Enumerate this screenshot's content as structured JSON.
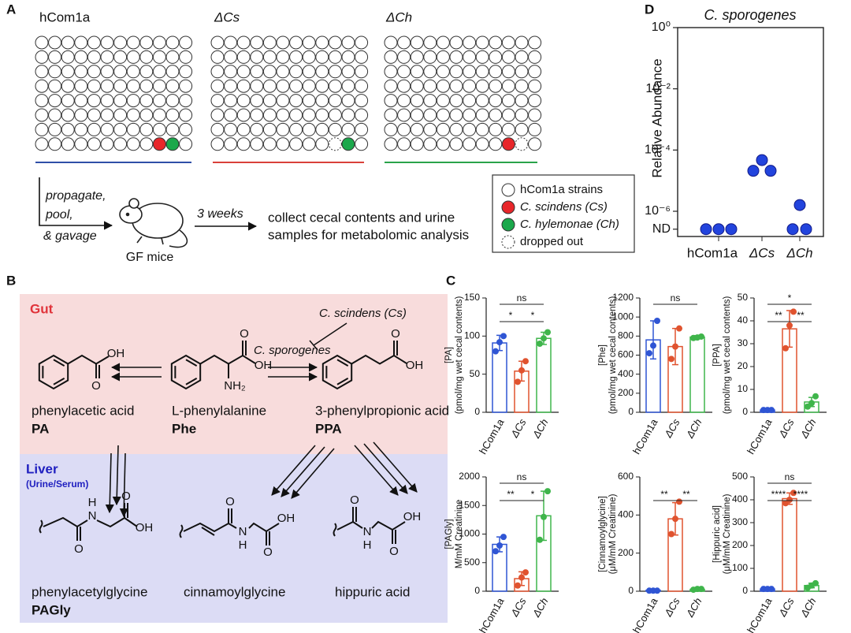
{
  "panel_labels": [
    "A",
    "B",
    "C",
    "D"
  ],
  "panel_a": {
    "groups": [
      "hCom1a",
      "ΔCs",
      "ΔCh"
    ],
    "steps": [
      "propagate,",
      "pool,",
      "& gavage"
    ],
    "mice": "GF mice",
    "duration": "3 weeks",
    "outcome": [
      "collect cecal contents and urine",
      "samples for metabolomic analysis"
    ],
    "legend": [
      "hCom1a strains",
      "C. scindens (Cs)",
      "C. hylemonae (Ch)",
      "dropped out"
    ]
  },
  "panel_b": {
    "gut": "Gut",
    "liver": "Liver",
    "liver_note": "(Urine/Serum)",
    "inhibitor": "C. scindens (Cs)",
    "enzyme": "C. sporogenes",
    "compounds": [
      {
        "name": "phenylacetic acid",
        "abbr": "PA",
        "atoms": [
          "O",
          "OH"
        ]
      },
      {
        "name": "L-phenylalanine",
        "abbr": "Phe",
        "atoms": [
          "O",
          "OH",
          "NH₂"
        ]
      },
      {
        "name": "3-phenylpropionic acid",
        "abbr": "PPA",
        "atoms": [
          "O",
          "OH"
        ]
      },
      {
        "name": "phenylacetylglycine",
        "abbr": "PAGly",
        "atoms": [
          "H",
          "N",
          "O",
          "O",
          "OH"
        ]
      },
      {
        "name": "cinnamoylglycine",
        "atoms": [
          "O",
          "H",
          "N",
          "O",
          "OH"
        ]
      },
      {
        "name": "hippuric acid",
        "atoms": [
          "O",
          "H",
          "N",
          "O",
          "OH"
        ]
      }
    ]
  },
  "chart_data": [
    {
      "type": "bar",
      "y_label": [
        "[PA]",
        "(pmol/mg wet cecal contents)"
      ],
      "categories": [
        "hCom1a",
        "ΔCs",
        "ΔCh"
      ],
      "colors": [
        "#2f55d4",
        "#e0532f",
        "#3fb54b"
      ],
      "values": [
        91,
        54,
        97
      ],
      "errors": [
        10,
        13,
        8
      ],
      "points": [
        [
          80,
          92,
          100
        ],
        [
          40,
          55,
          67
        ],
        [
          90,
          97,
          105
        ]
      ],
      "ylim": [
        0,
        150
      ],
      "yticks": [
        0,
        50,
        100,
        150
      ],
      "significance": [
        {
          "label": "ns",
          "between": [
            "hCom1a",
            "ΔCh"
          ]
        },
        {
          "label": "*",
          "between": [
            "hCom1a",
            "ΔCs"
          ]
        },
        {
          "label": "*",
          "between": [
            "ΔCs",
            "ΔCh"
          ]
        }
      ]
    },
    {
      "type": "bar",
      "y_label": [
        "[Phe]",
        "(pmol/mg wet cecal contents)"
      ],
      "categories": [
        "hCom1a",
        "ΔCs",
        "ΔCh"
      ],
      "colors": [
        "#2f55d4",
        "#e0532f",
        "#3fb54b"
      ],
      "values": [
        760,
        690,
        790
      ],
      "errors": [
        200,
        190,
        15
      ],
      "points": [
        [
          620,
          700,
          960
        ],
        [
          560,
          690,
          880
        ],
        [
          780,
          785,
          795
        ]
      ],
      "ylim": [
        0,
        1200
      ],
      "yticks": [
        0,
        200,
        400,
        600,
        800,
        1000,
        1200
      ],
      "significance": [
        {
          "label": "ns",
          "between": [
            "hCom1a",
            "ΔCh"
          ]
        }
      ]
    },
    {
      "type": "bar",
      "y_label": [
        "[PPA]",
        "(pmol/mg wet cecal contents)"
      ],
      "categories": [
        "hCom1a",
        "ΔCs",
        "ΔCh"
      ],
      "colors": [
        "#2f55d4",
        "#e0532f",
        "#3fb54b"
      ],
      "values": [
        1,
        36.5,
        4.5
      ],
      "errors": [
        0,
        8,
        2
      ],
      "points": [
        [
          1,
          1,
          1
        ],
        [
          28,
          38,
          44
        ],
        [
          2.5,
          4,
          7
        ]
      ],
      "ylim": [
        0,
        50
      ],
      "yticks": [
        0,
        10,
        20,
        30,
        40,
        50
      ],
      "significance": [
        {
          "label": "*",
          "between": [
            "hCom1a",
            "ΔCh"
          ]
        },
        {
          "label": "**",
          "between": [
            "hCom1a",
            "ΔCs"
          ]
        },
        {
          "label": "**",
          "between": [
            "ΔCs",
            "ΔCh"
          ]
        }
      ]
    },
    {
      "type": "bar",
      "y_label": [
        "[PAGly]",
        "M/mM Creatinine"
      ],
      "categories": [
        "hCom1a",
        "ΔCs",
        "ΔCh"
      ],
      "colors": [
        "#2f55d4",
        "#e0532f",
        "#3fb54b"
      ],
      "values": [
        820,
        220,
        1320
      ],
      "errors": [
        130,
        120,
        430
      ],
      "points": [
        [
          700,
          800,
          950
        ],
        [
          100,
          240,
          330
        ],
        [
          900,
          1300,
          1750
        ]
      ],
      "ylim": [
        0,
        2000
      ],
      "yticks": [
        0,
        500,
        1000,
        1500,
        2000
      ],
      "significance": [
        {
          "label": "ns",
          "between": [
            "hCom1a",
            "ΔCh"
          ]
        },
        {
          "label": "**",
          "between": [
            "hCom1a",
            "ΔCs"
          ]
        },
        {
          "label": "*",
          "between": [
            "ΔCs",
            "ΔCh"
          ]
        }
      ]
    },
    {
      "type": "bar",
      "y_label": [
        "[Cinnamoylglycine]",
        "(μM/mM Creatinine)"
      ],
      "categories": [
        "hCom1a",
        "ΔCs",
        "ΔCh"
      ],
      "colors": [
        "#2f55d4",
        "#e0532f",
        "#3fb54b"
      ],
      "values": [
        5,
        380,
        10
      ],
      "errors": [
        0,
        85,
        3
      ],
      "points": [
        [
          3,
          3,
          3
        ],
        [
          300,
          380,
          470
        ],
        [
          8,
          12,
          12
        ]
      ],
      "ylim": [
        0,
        600
      ],
      "yticks": [
        0,
        200,
        400,
        600
      ],
      "significance": [
        {
          "label": "**",
          "between": [
            "hCom1a",
            "ΔCs"
          ]
        },
        {
          "label": "**",
          "between": [
            "ΔCs",
            "ΔCh"
          ]
        }
      ]
    },
    {
      "type": "bar",
      "y_label": [
        "[Hippuric acid]",
        "(μM/mM Creatinine)"
      ],
      "categories": [
        "hCom1a",
        "ΔCs",
        "ΔCh"
      ],
      "colors": [
        "#2f55d4",
        "#e0532f",
        "#3fb54b"
      ],
      "values": [
        10,
        405,
        25
      ],
      "errors": [
        0,
        25,
        10
      ],
      "points": [
        [
          10,
          10,
          10
        ],
        [
          385,
          400,
          430
        ],
        [
          15,
          25,
          35
        ]
      ],
      "ylim": [
        0,
        500
      ],
      "yticks": [
        0,
        100,
        200,
        300,
        400,
        500
      ],
      "significance": [
        {
          "label": "ns",
          "between": [
            "hCom1a",
            "ΔCh"
          ]
        },
        {
          "label": "****",
          "between": [
            "hCom1a",
            "ΔCs"
          ]
        },
        {
          "label": "****",
          "between": [
            "ΔCs",
            "ΔCh"
          ]
        }
      ]
    },
    {
      "type": "scatter",
      "title": "C. sporogenes",
      "y_label": "Relative Abundance",
      "categories": [
        "hCom1a",
        "ΔCs",
        "ΔCh"
      ],
      "color": "#2244dd",
      "points": [
        [
          2.6e-07,
          2.6e-07,
          2.6e-07
        ],
        [
          4.7e-05,
          2.1e-05,
          2.1e-05
        ],
        [
          1.6e-06,
          2.6e-07,
          2.6e-07
        ]
      ],
      "ylim": [
        1.5e-07,
        1
      ],
      "log": true,
      "yticks": [
        {
          "value": 1,
          "label": "10⁰"
        },
        {
          "value": 0.01,
          "label": "10⁻²"
        },
        {
          "value": 0.0001,
          "label": "10⁻⁴"
        },
        {
          "value": 1e-06,
          "label": "10⁻⁶"
        },
        {
          "value": 2.6e-07,
          "label": "ND"
        }
      ]
    }
  ]
}
